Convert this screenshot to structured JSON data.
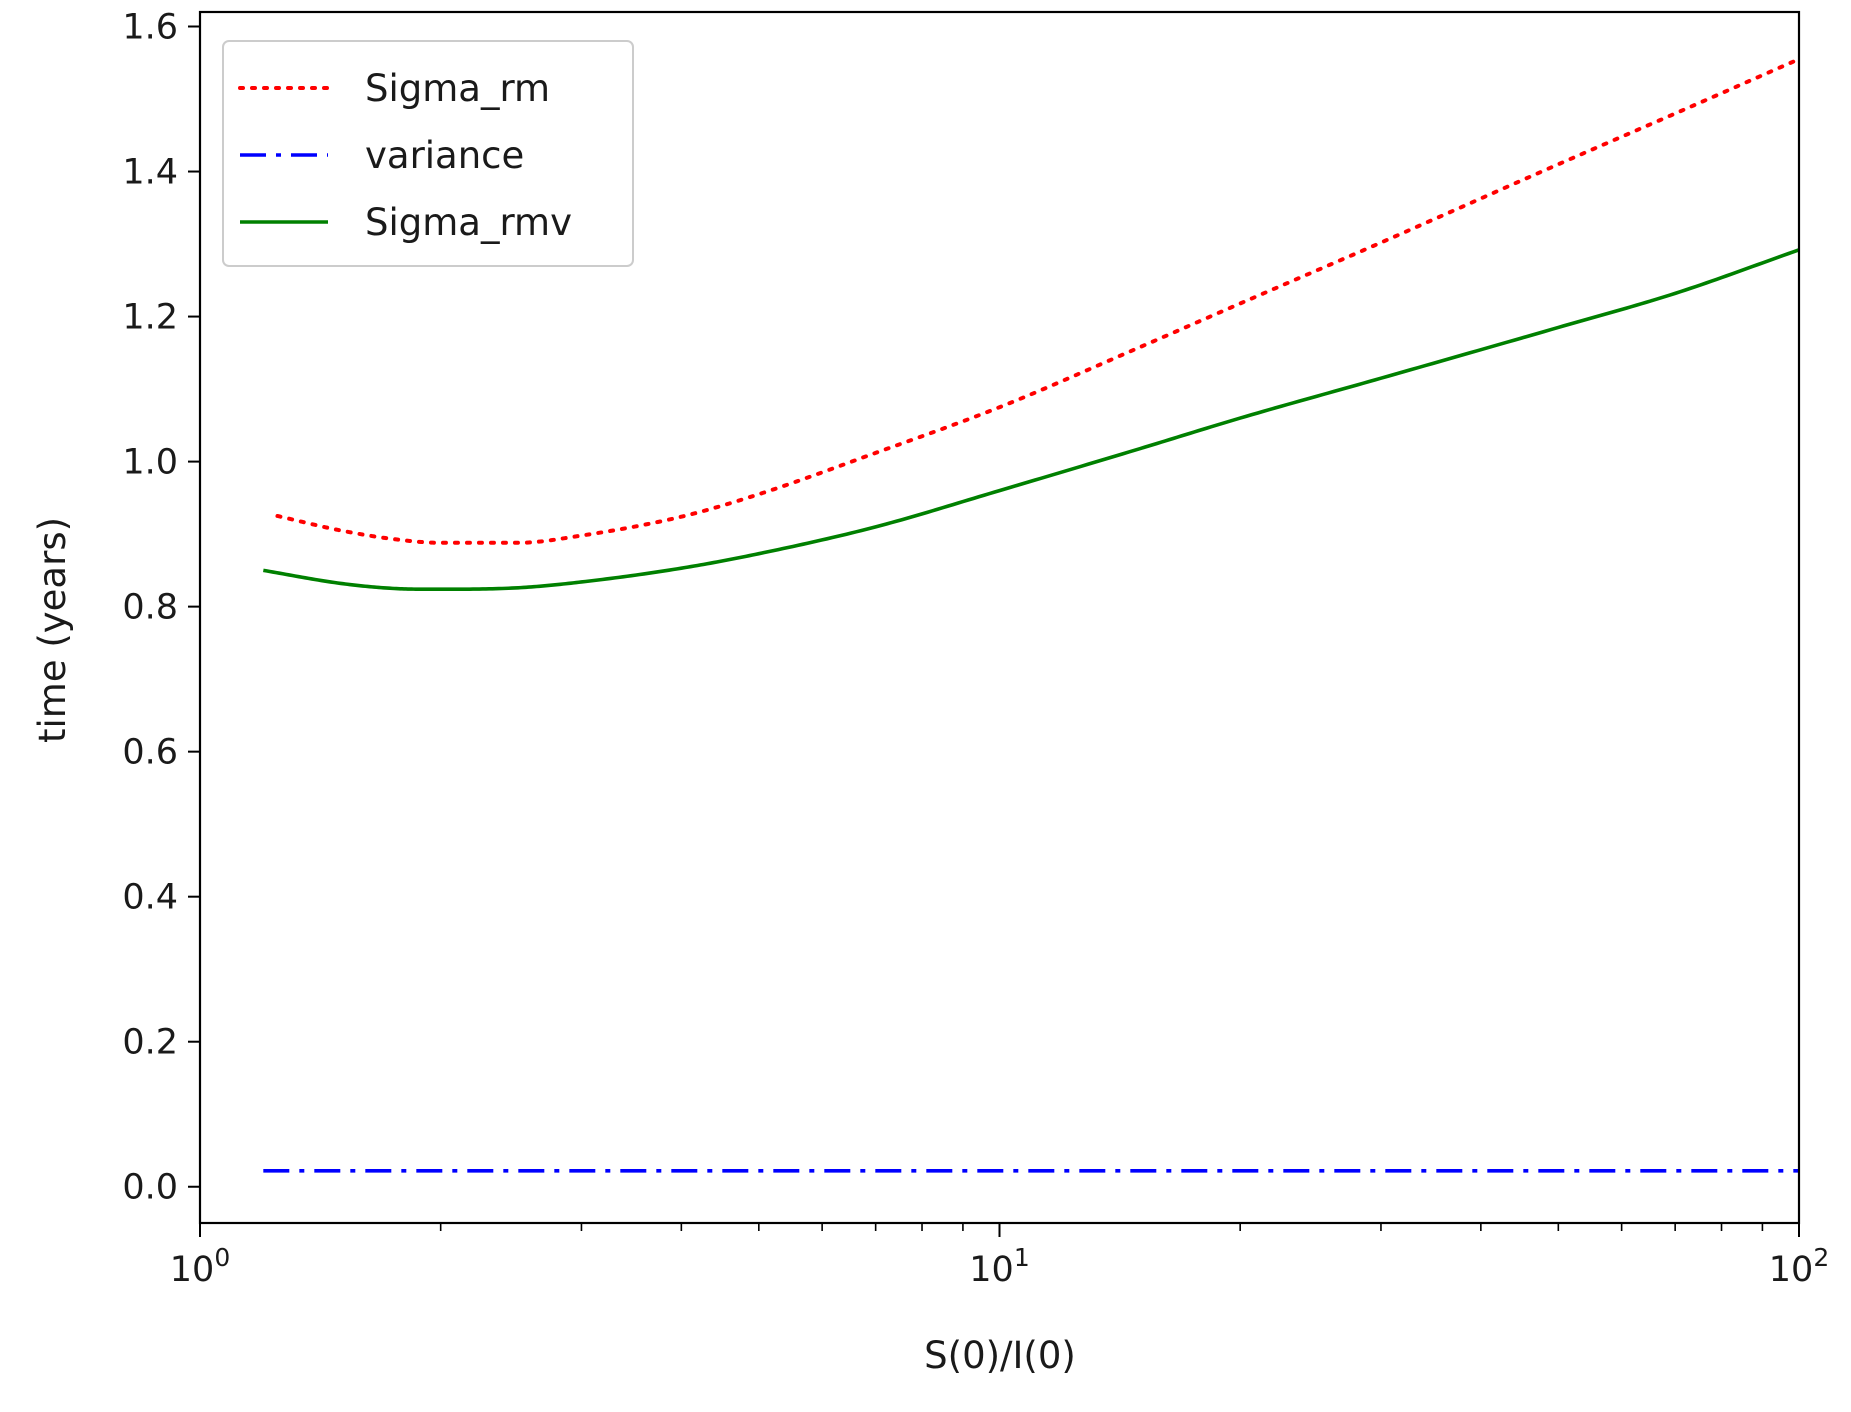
{
  "chart_data": {
    "type": "line",
    "title": "",
    "xlabel": "S(0)/I(0)",
    "ylabel": "time (years)",
    "xscale": "log",
    "xlim": [
      1,
      100
    ],
    "ylim": [
      -0.05,
      1.62
    ],
    "xticks": [
      {
        "value": 1,
        "base": "10",
        "exp": "0"
      },
      {
        "value": 10,
        "base": "10",
        "exp": "1"
      },
      {
        "value": 100,
        "base": "10",
        "exp": "2"
      }
    ],
    "yticks": [
      {
        "value": 0.0,
        "label": "0.0"
      },
      {
        "value": 0.2,
        "label": "0.2"
      },
      {
        "value": 0.4,
        "label": "0.4"
      },
      {
        "value": 0.6,
        "label": "0.6"
      },
      {
        "value": 0.8,
        "label": "0.8"
      },
      {
        "value": 1.0,
        "label": "1.0"
      },
      {
        "value": 1.2,
        "label": "1.2"
      },
      {
        "value": 1.4,
        "label": "1.4"
      },
      {
        "value": 1.6,
        "label": "1.6"
      }
    ],
    "grid": false,
    "legend": {
      "position": "top-left"
    },
    "series": [
      {
        "name": "Sigma_rm",
        "color": "#ff0000",
        "linestyle": "dotted",
        "x": [
          1.25,
          1.5,
          1.75,
          2.0,
          2.5,
          3.0,
          4.0,
          5.0,
          7.0,
          10.0,
          15.0,
          20.0,
          30.0,
          50.0,
          70.0,
          100.0
        ],
        "y": [
          0.925,
          0.905,
          0.893,
          0.888,
          0.888,
          0.898,
          0.924,
          0.955,
          1.012,
          1.075,
          1.158,
          1.218,
          1.302,
          1.41,
          1.48,
          1.555
        ]
      },
      {
        "name": "variance",
        "color": "#0000ff",
        "linestyle": "dashdot",
        "x": [
          1.2,
          100.0
        ],
        "y": [
          0.022,
          0.022
        ]
      },
      {
        "name": "Sigma_rmv",
        "color": "#008000",
        "linestyle": "solid",
        "x": [
          1.2,
          1.5,
          1.75,
          2.0,
          2.5,
          3.0,
          4.0,
          5.0,
          7.0,
          10.0,
          15.0,
          20.0,
          30.0,
          50.0,
          70.0,
          100.0
        ],
        "y": [
          0.85,
          0.832,
          0.825,
          0.824,
          0.826,
          0.834,
          0.853,
          0.873,
          0.91,
          0.96,
          1.018,
          1.06,
          1.115,
          1.185,
          1.232,
          1.292
        ]
      }
    ]
  }
}
